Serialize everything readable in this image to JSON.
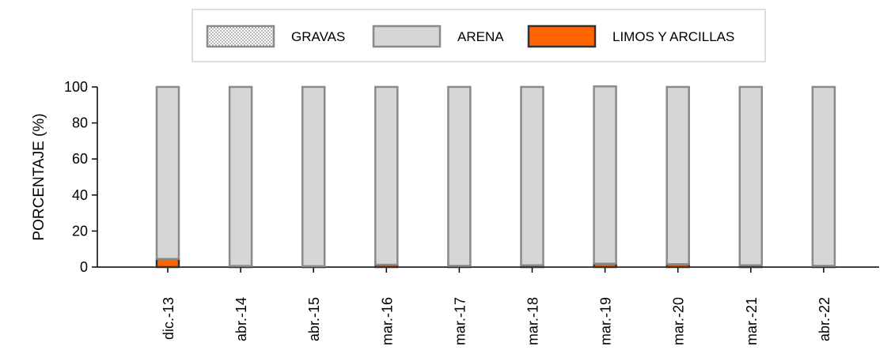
{
  "chart_data": {
    "type": "bar",
    "stacked": true,
    "categories": [
      "dic.-13",
      "abr.-14",
      "abr.-15",
      "mar.-16",
      "mar.-17",
      "mar.-18",
      "mar.-19",
      "mar.-20",
      "mar.-21",
      "abr.-22"
    ],
    "series": [
      {
        "name": "GRAVAS",
        "values": [
          0,
          0,
          0,
          0,
          0,
          0,
          0,
          0,
          0,
          0
        ],
        "color": "#ffffff",
        "pattern": "dots"
      },
      {
        "name": "ARENA",
        "values": [
          95.5,
          99.4,
          99.5,
          98.7,
          99.3,
          99.0,
          98.4,
          98.4,
          99.0,
          99.3
        ],
        "color": "#d6d6d6"
      },
      {
        "name": "LIMOS Y ARCILLAS",
        "values": [
          4.5,
          0.6,
          0.5,
          1.3,
          0.7,
          1.0,
          1.9,
          1.6,
          1.0,
          0.7
        ],
        "color": "#ff6600"
      }
    ],
    "ylabel": "PORCENTAJE (%)",
    "xlabel": "",
    "ylim": [
      0,
      100
    ],
    "yticks": [
      0,
      20,
      40,
      60,
      80,
      100
    ],
    "legend_position": "top-center",
    "grid": false
  }
}
